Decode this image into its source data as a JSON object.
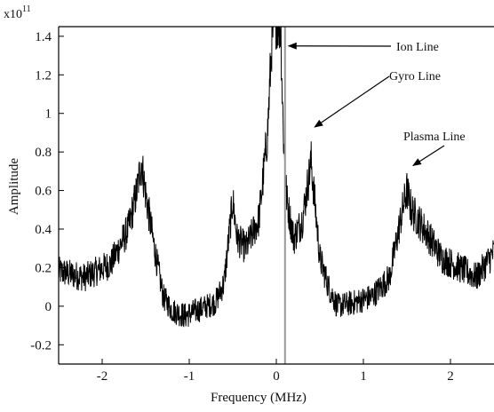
{
  "chart_data": {
    "type": "line",
    "xlabel": "Frequency (MHz)",
    "ylabel": "Amplitude",
    "y_exponent_base": "x10",
    "y_exponent_power": "11",
    "xlim": [
      -2.5,
      2.5
    ],
    "ylim": [
      -0.3,
      1.45
    ],
    "x_ticks": [
      {
        "value": -2,
        "label": "-2"
      },
      {
        "value": -1,
        "label": "-1"
      },
      {
        "value": 0,
        "label": "0"
      },
      {
        "value": 1,
        "label": "1"
      },
      {
        "value": 2,
        "label": "2"
      }
    ],
    "y_ticks": [
      {
        "value": -0.2,
        "label": "-0.2"
      },
      {
        "value": 0,
        "label": "0"
      },
      {
        "value": 0.2,
        "label": "0.2"
      },
      {
        "value": 0.4,
        "label": "0.4"
      },
      {
        "value": 0.6,
        "label": "0.6"
      },
      {
        "value": 0.8,
        "label": "0.8"
      },
      {
        "value": 1,
        "label": "1"
      },
      {
        "value": 1.2,
        "label": "1.2"
      },
      {
        "value": 1.4,
        "label": "1.4"
      }
    ],
    "grid": false,
    "series": [
      {
        "color": "#000000",
        "envelope": {
          "x": [
            -2.5,
            -2.2,
            -1.9,
            -1.7,
            -1.6,
            -1.55,
            -1.5,
            -1.4,
            -1.3,
            -1.2,
            -1.05,
            -0.9,
            -0.7,
            -0.6,
            -0.5,
            -0.45,
            -0.35,
            -0.2,
            -0.1,
            -0.05,
            0.0,
            0.05,
            0.08,
            0.12,
            0.2,
            0.3,
            0.4,
            0.45,
            0.5,
            0.6,
            0.7,
            0.9,
            1.1,
            1.3,
            1.45,
            1.5,
            1.55,
            1.7,
            1.9,
            2.1,
            2.3,
            2.5
          ],
          "y": [
            0.18,
            0.15,
            0.22,
            0.4,
            0.6,
            0.75,
            0.58,
            0.3,
            0.05,
            -0.02,
            -0.05,
            -0.02,
            0.02,
            0.12,
            0.55,
            0.35,
            0.3,
            0.45,
            0.9,
            1.4,
            1.5,
            1.45,
            0.9,
            0.55,
            0.35,
            0.45,
            0.75,
            0.5,
            0.25,
            0.1,
            0.0,
            0.02,
            0.05,
            0.15,
            0.5,
            0.6,
            0.5,
            0.4,
            0.25,
            0.2,
            0.15,
            0.28
          ]
        },
        "noise_amplitude": 0.11
      }
    ],
    "marker_line": {
      "x": 0.1,
      "color": "#999999"
    },
    "annotations": [
      {
        "text": "Ion Line",
        "target_x": 0.1,
        "target_y": 1.35
      },
      {
        "text": "Gyro Line",
        "target_x": 0.42,
        "target_y": 0.92
      },
      {
        "text": "Plasma Line",
        "target_x": 1.55,
        "target_y": 0.72
      }
    ]
  }
}
